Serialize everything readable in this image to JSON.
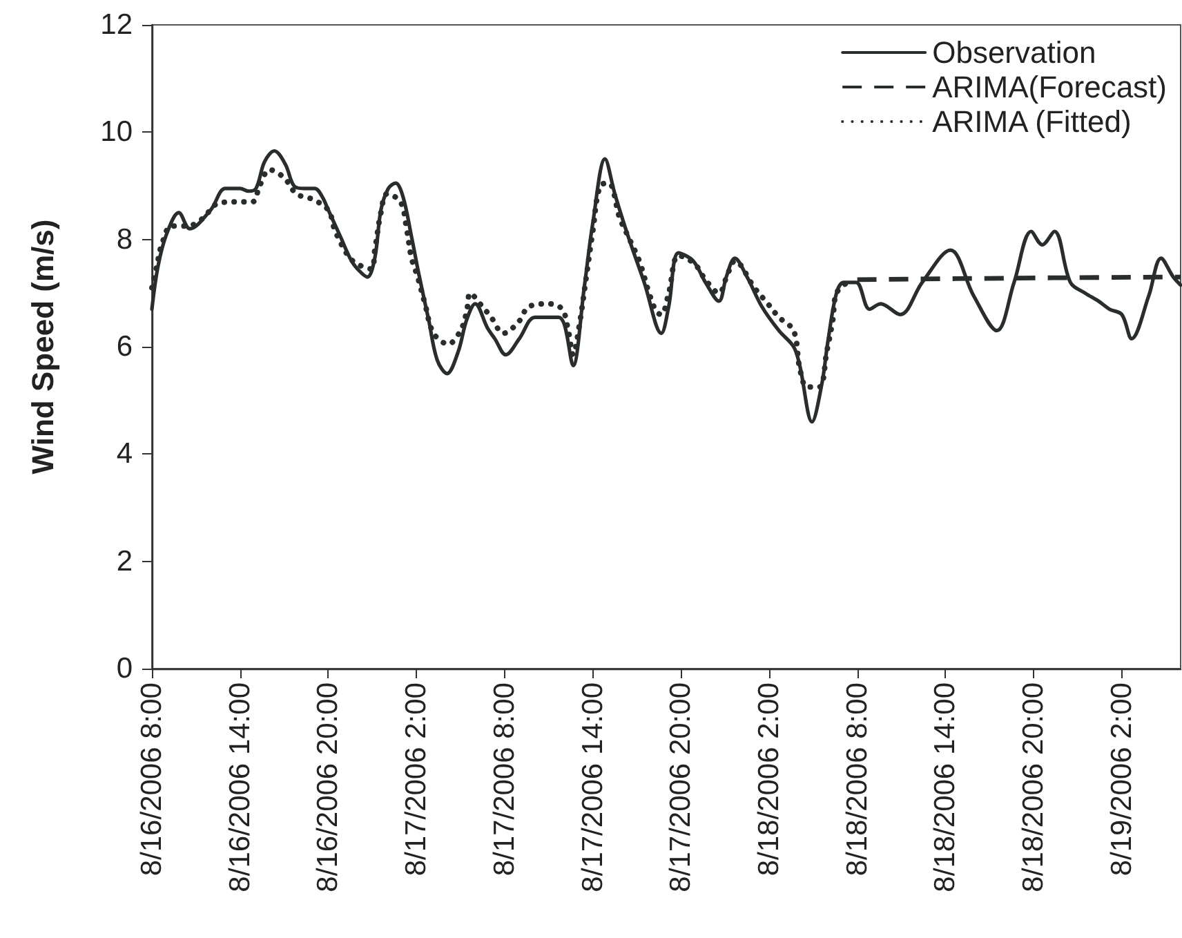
{
  "chart_data": {
    "type": "line",
    "ylabel": "Wind Speed (m/s)",
    "xlim": [
      "2006-08-16T08:00",
      "2006-08-19T06:00"
    ],
    "xticks": [
      {
        "value": "2006-08-16T08:00",
        "label": "8/16/2006 8:00"
      },
      {
        "value": "2006-08-16T14:00",
        "label": "8/16/2006 14:00"
      },
      {
        "value": "2006-08-16T20:00",
        "label": "8/16/2006 20:00"
      },
      {
        "value": "2006-08-17T02:00",
        "label": "8/17/2006 2:00"
      },
      {
        "value": "2006-08-17T08:00",
        "label": "8/17/2006 8:00"
      },
      {
        "value": "2006-08-17T14:00",
        "label": "8/17/2006 14:00"
      },
      {
        "value": "2006-08-17T20:00",
        "label": "8/17/2006 20:00"
      },
      {
        "value": "2006-08-18T02:00",
        "label": "8/18/2006 2:00"
      },
      {
        "value": "2006-08-18T08:00",
        "label": "8/18/2006 8:00"
      },
      {
        "value": "2006-08-18T14:00",
        "label": "8/18/2006 14:00"
      },
      {
        "value": "2006-08-18T20:00",
        "label": "8/18/2006 20:00"
      },
      {
        "value": "2006-08-19T02:00",
        "label": "8/19/2006 2:00"
      }
    ],
    "ylim": [
      0,
      12
    ],
    "yticks": [
      0,
      2,
      4,
      6,
      8,
      10,
      12
    ],
    "grid": false,
    "legend": "top right",
    "marker": "none",
    "series": [
      {
        "name": "Observation",
        "color": "#2a2d2d",
        "line_style": "solid",
        "x": [
          "2006-08-16T08:00",
          "2006-08-16T08:25",
          "2006-08-16T09:00",
          "2006-08-16T09:50",
          "2006-08-16T10:35",
          "2006-08-16T12:00",
          "2006-08-16T13:00",
          "2006-08-16T14:00",
          "2006-08-16T14:35",
          "2006-08-16T15:05",
          "2006-08-16T15:40",
          "2006-08-16T16:20",
          "2006-08-16T17:05",
          "2006-08-16T17:40",
          "2006-08-16T18:20",
          "2006-08-16T19:05",
          "2006-08-16T19:35",
          "2006-08-16T20:00",
          "2006-08-16T20:50",
          "2006-08-16T21:35",
          "2006-08-16T22:10",
          "2006-08-16T22:40",
          "2006-08-16T23:10",
          "2006-08-16T23:35",
          "2006-08-17T00:05",
          "2006-08-17T00:35",
          "2006-08-17T01:05",
          "2006-08-17T01:40",
          "2006-08-17T02:10",
          "2006-08-17T02:50",
          "2006-08-17T03:25",
          "2006-08-17T04:05",
          "2006-08-17T04:50",
          "2006-08-17T05:25",
          "2006-08-17T06:00",
          "2006-08-17T06:50",
          "2006-08-17T07:20",
          "2006-08-17T08:05",
          "2006-08-17T09:00",
          "2006-08-17T10:05",
          "2006-08-17T11:40",
          "2006-08-17T12:05",
          "2006-08-17T12:40",
          "2006-08-17T13:25",
          "2006-08-17T14:00",
          "2006-08-17T14:50",
          "2006-08-17T15:30",
          "2006-08-17T16:25",
          "2006-08-17T17:30",
          "2006-08-17T18:40",
          "2006-08-17T19:10",
          "2006-08-17T19:50",
          "2006-08-17T20:50",
          "2006-08-17T21:40",
          "2006-08-17T22:35",
          "2006-08-17T23:05",
          "2006-08-17T23:40",
          "2006-08-18T00:30",
          "2006-08-18T01:30",
          "2006-08-18T02:40",
          "2006-08-18T03:40",
          "2006-08-18T04:05",
          "2006-08-18T04:55",
          "2006-08-18T05:35",
          "2006-08-18T06:00",
          "2006-08-18T06:35",
          "2006-08-18T07:05",
          "2006-08-18T07:55",
          "2006-08-18T08:50",
          "2006-08-18T09:35",
          "2006-08-18T10:55",
          "2006-08-18T12:25",
          "2006-08-18T14:20",
          "2006-08-18T15:55",
          "2006-08-18T17:30",
          "2006-08-18T18:40",
          "2006-08-18T19:50",
          "2006-08-18T20:35",
          "2006-08-18T21:25",
          "2006-08-18T22:30",
          "2006-08-18T23:30",
          "2006-08-19T00:25",
          "2006-08-19T01:10",
          "2006-08-19T02:00",
          "2006-08-19T02:40",
          "2006-08-19T03:50",
          "2006-08-19T04:40",
          "2006-08-19T05:30",
          "2006-08-19T06:00"
        ],
        "values": [
          6.7,
          7.5,
          8.1,
          8.5,
          8.2,
          8.55,
          8.95,
          8.95,
          8.9,
          8.95,
          9.45,
          9.65,
          9.4,
          9.0,
          8.95,
          8.95,
          8.8,
          8.55,
          8.05,
          7.6,
          7.4,
          7.3,
          7.65,
          8.55,
          8.95,
          9.05,
          8.8,
          8.05,
          7.35,
          6.5,
          5.75,
          5.5,
          5.9,
          6.5,
          6.8,
          6.35,
          6.15,
          5.85,
          6.15,
          6.55,
          6.55,
          6.4,
          5.65,
          7.1,
          8.3,
          9.5,
          8.85,
          8.05,
          7.2,
          6.25,
          6.75,
          7.75,
          7.6,
          7.2,
          6.85,
          7.3,
          7.65,
          7.3,
          6.75,
          6.3,
          6.0,
          5.65,
          4.6,
          5.3,
          6.1,
          7.0,
          7.2,
          7.2,
          6.7,
          6.8,
          6.6,
          7.2,
          7.8,
          6.95,
          6.3,
          7.2,
          8.15,
          7.9,
          8.15,
          7.2,
          7.0,
          6.85,
          6.7,
          6.6,
          6.15,
          6.95,
          7.65,
          7.3,
          7.15
        ]
      },
      {
        "name": "ARIMA(Forecast)",
        "color": "#2a2d2d",
        "line_style": "dashed",
        "x": [
          "2006-08-18T08:00",
          "2006-08-18T19:00",
          "2006-08-19T06:00"
        ],
        "values": [
          7.25,
          7.28,
          7.3
        ]
      },
      {
        "name": "ARIMA (Fitted)",
        "color": "#2a2d2d",
        "line_style": "dotted",
        "x": [
          "2006-08-16T08:00",
          "2006-08-16T08:20",
          "2006-08-16T08:40",
          "2006-08-16T09:20",
          "2006-08-16T10:25",
          "2006-08-16T11:30",
          "2006-08-16T12:20",
          "2006-08-16T13:35",
          "2006-08-16T14:50",
          "2006-08-16T15:20",
          "2006-08-16T16:00",
          "2006-08-16T17:00",
          "2006-08-16T17:50",
          "2006-08-16T18:55",
          "2006-08-16T20:00",
          "2006-08-16T20:25",
          "2006-08-16T20:55",
          "2006-08-16T21:40",
          "2006-08-16T22:55",
          "2006-08-16T23:10",
          "2006-08-16T23:35",
          "2006-08-17T00:00",
          "2006-08-17T00:55",
          "2006-08-17T01:20",
          "2006-08-17T01:40",
          "2006-08-17T02:05",
          "2006-08-17T02:35",
          "2006-08-17T03:10",
          "2006-08-17T04:10",
          "2006-08-17T05:00",
          "2006-08-17T05:25",
          "2006-08-17T05:40",
          "2006-08-17T06:20",
          "2006-08-17T07:05",
          "2006-08-17T07:55",
          "2006-08-17T08:55",
          "2006-08-17T09:40",
          "2006-08-17T11:00",
          "2006-08-17T11:55",
          "2006-08-17T12:20",
          "2006-08-17T12:40",
          "2006-08-17T13:05",
          "2006-08-17T13:35",
          "2006-08-17T14:00",
          "2006-08-17T14:30",
          "2006-08-17T15:05",
          "2006-08-17T15:50",
          "2006-08-17T16:25",
          "2006-08-17T17:10",
          "2006-08-17T17:50",
          "2006-08-17T18:20",
          "2006-08-17T18:40",
          "2006-08-17T19:10",
          "2006-08-17T19:50",
          "2006-08-17T20:55",
          "2006-08-17T21:40",
          "2006-08-17T22:35",
          "2006-08-17T23:10",
          "2006-08-17T23:40",
          "2006-08-18T01:00",
          "2006-08-18T01:55",
          "2006-08-18T02:40",
          "2006-08-18T03:40",
          "2006-08-18T04:05",
          "2006-08-18T04:35",
          "2006-08-18T05:25",
          "2006-08-18T05:55",
          "2006-08-18T06:20",
          "2006-08-18T06:35",
          "2006-08-18T07:20"
        ],
        "values": [
          7.1,
          7.5,
          7.9,
          8.25,
          8.25,
          8.4,
          8.65,
          8.7,
          8.7,
          9.0,
          9.3,
          9.15,
          8.85,
          8.75,
          8.55,
          8.2,
          7.9,
          7.6,
          7.45,
          7.8,
          8.5,
          8.85,
          8.7,
          8.2,
          7.65,
          7.3,
          6.8,
          6.25,
          6.05,
          6.3,
          6.65,
          7.0,
          6.8,
          6.55,
          6.25,
          6.45,
          6.75,
          6.8,
          6.7,
          6.3,
          5.85,
          6.4,
          7.35,
          8.15,
          9.0,
          9.05,
          8.4,
          8.05,
          7.6,
          7.0,
          6.65,
          6.6,
          7.0,
          7.7,
          7.55,
          7.25,
          7.0,
          7.35,
          7.6,
          7.1,
          6.8,
          6.55,
          6.3,
          5.6,
          5.25,
          5.25,
          5.9,
          6.5,
          7.0,
          7.2
        ]
      }
    ]
  }
}
